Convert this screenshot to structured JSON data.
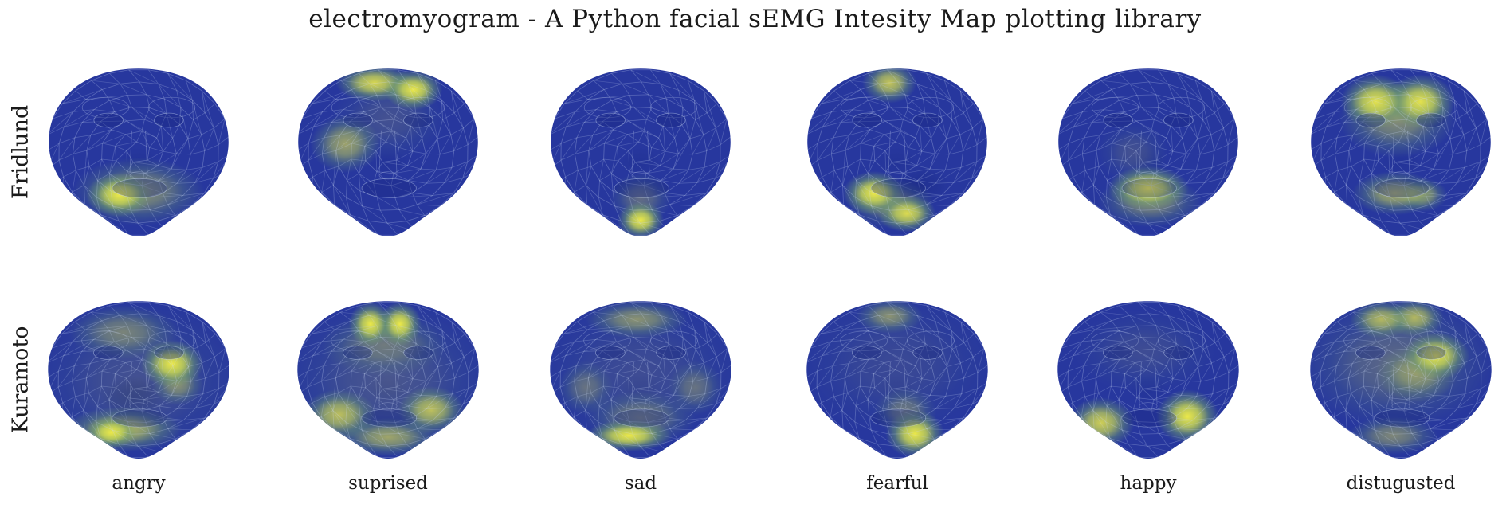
{
  "title": "electromyogram - A Python facial sEMG Intesity Map plotting library",
  "rows": [
    "Fridlund",
    "Kuramoto"
  ],
  "columns": [
    "angry",
    "suprised",
    "sad",
    "fearful",
    "happy",
    "distugusted"
  ],
  "colors": {
    "background": "#ffffff",
    "text": "#1a1a1a",
    "face_base": "#27379e",
    "mesh_line": "#cddcf8",
    "hot_core": "#ebe84a",
    "hot_mid": "#c5d554",
    "hot_outer": "#74a36c",
    "dark_feature": "#16267e"
  },
  "chart_data": {
    "type": "heatmap",
    "title": "electromyogram - A Python facial sEMG Intesity Map plotting library",
    "row_labels": [
      "Fridlund",
      "Kuramoto"
    ],
    "col_labels": [
      "angry",
      "suprised",
      "sad",
      "fearful",
      "happy",
      "distugusted"
    ],
    "colormap": {
      "low": "#27379e",
      "mid": "#74a36c",
      "high": "#ebe84a"
    },
    "faces": [
      {
        "row": "Fridlund",
        "emotion": "angry",
        "hotspots": [
          {
            "x": 0.4,
            "y": 0.75,
            "rx": 0.17,
            "ry": 0.13,
            "intensity": 1.0,
            "region": "left mouth corner"
          },
          {
            "x": 0.5,
            "y": 0.73,
            "rx": 0.34,
            "ry": 0.2,
            "intensity": 0.5,
            "region": "perioral halo"
          }
        ],
        "dark_spots": []
      },
      {
        "row": "Fridlund",
        "emotion": "suprised",
        "hotspots": [
          {
            "x": 0.63,
            "y": 0.13,
            "rx": 0.15,
            "ry": 0.12,
            "intensity": 1.0,
            "region": "right forehead"
          },
          {
            "x": 0.43,
            "y": 0.09,
            "rx": 0.2,
            "ry": 0.11,
            "intensity": 0.9,
            "region": "center forehead"
          },
          {
            "x": 0.28,
            "y": 0.45,
            "rx": 0.18,
            "ry": 0.17,
            "intensity": 0.6,
            "region": "left cheek"
          },
          {
            "x": 0.5,
            "y": 0.3,
            "rx": 0.3,
            "ry": 0.24,
            "intensity": 0.15,
            "region": "upper face glow"
          }
        ],
        "dark_spots": []
      },
      {
        "row": "Fridlund",
        "emotion": "sad",
        "hotspots": [
          {
            "x": 0.5,
            "y": 0.9,
            "rx": 0.12,
            "ry": 0.11,
            "intensity": 1.0,
            "region": "chin"
          },
          {
            "x": 0.5,
            "y": 0.77,
            "rx": 0.16,
            "ry": 0.15,
            "intensity": 0.3,
            "region": "below mouth glow"
          }
        ],
        "dark_spots": []
      },
      {
        "row": "Fridlund",
        "emotion": "fearful",
        "hotspots": [
          {
            "x": 0.38,
            "y": 0.74,
            "rx": 0.16,
            "ry": 0.13,
            "intensity": 1.0,
            "region": "left mouth corner"
          },
          {
            "x": 0.55,
            "y": 0.86,
            "rx": 0.15,
            "ry": 0.11,
            "intensity": 0.9,
            "region": "chin right"
          },
          {
            "x": 0.46,
            "y": 0.09,
            "rx": 0.14,
            "ry": 0.12,
            "intensity": 0.8,
            "region": "center forehead"
          },
          {
            "x": 0.47,
            "y": 0.8,
            "rx": 0.22,
            "ry": 0.15,
            "intensity": 0.4,
            "region": "lower face bridge"
          }
        ],
        "dark_spots": [
          {
            "x": 0.63,
            "y": 0.7,
            "rx": 0.14,
            "ry": 0.12,
            "intensity": 0.35,
            "region": "right of mouth"
          }
        ]
      },
      {
        "row": "Fridlund",
        "emotion": "happy",
        "hotspots": [
          {
            "x": 0.5,
            "y": 0.71,
            "rx": 0.21,
            "ry": 0.13,
            "intensity": 1.0,
            "region": "mouth band"
          },
          {
            "x": 0.51,
            "y": 0.79,
            "rx": 0.27,
            "ry": 0.15,
            "intensity": 0.45,
            "region": "lower mouth glow"
          },
          {
            "x": 0.42,
            "y": 0.5,
            "rx": 0.18,
            "ry": 0.18,
            "intensity": 0.15,
            "region": "left nose side"
          }
        ],
        "dark_spots": []
      },
      {
        "row": "Fridlund",
        "emotion": "distugusted",
        "hotspots": [
          {
            "x": 0.37,
            "y": 0.2,
            "rx": 0.18,
            "ry": 0.16,
            "intensity": 0.95,
            "region": "left brow"
          },
          {
            "x": 0.6,
            "y": 0.2,
            "rx": 0.18,
            "ry": 0.16,
            "intensity": 0.95,
            "region": "right brow"
          },
          {
            "x": 0.48,
            "y": 0.3,
            "rx": 0.3,
            "ry": 0.23,
            "intensity": 0.5,
            "region": "glabella / eye region"
          },
          {
            "x": 0.47,
            "y": 0.74,
            "rx": 0.22,
            "ry": 0.13,
            "intensity": 0.65,
            "region": "mouth band"
          },
          {
            "x": 0.61,
            "y": 0.75,
            "rx": 0.13,
            "ry": 0.1,
            "intensity": 0.55,
            "region": "right mouth corner"
          }
        ],
        "dark_spots": []
      },
      {
        "row": "Kuramoto",
        "emotion": "angry",
        "hotspots": [
          {
            "x": 0.67,
            "y": 0.4,
            "rx": 0.16,
            "ry": 0.15,
            "intensity": 1.0,
            "region": "right mid-cheek"
          },
          {
            "x": 0.36,
            "y": 0.83,
            "rx": 0.13,
            "ry": 0.1,
            "intensity": 1.0,
            "region": "left chin"
          },
          {
            "x": 0.42,
            "y": 0.81,
            "rx": 0.3,
            "ry": 0.14,
            "intensity": 0.7,
            "region": "chin band"
          },
          {
            "x": 0.7,
            "y": 0.53,
            "rx": 0.13,
            "ry": 0.13,
            "intensity": 0.45,
            "region": "right jaw streak"
          },
          {
            "x": 0.42,
            "y": 0.2,
            "rx": 0.28,
            "ry": 0.17,
            "intensity": 0.4,
            "region": "forehead"
          },
          {
            "x": 0.5,
            "y": 0.5,
            "rx": 0.55,
            "ry": 0.5,
            "intensity": 0.15,
            "region": "overall tint"
          }
        ],
        "dark_spots": [
          {
            "x": 0.47,
            "y": 0.61,
            "rx": 0.16,
            "ry": 0.13,
            "intensity": 0.5,
            "region": "under nose"
          }
        ]
      },
      {
        "row": "Kuramoto",
        "emotion": "suprised",
        "hotspots": [
          {
            "x": 0.41,
            "y": 0.15,
            "rx": 0.11,
            "ry": 0.14,
            "intensity": 1.0,
            "region": "left forehead column"
          },
          {
            "x": 0.56,
            "y": 0.15,
            "rx": 0.11,
            "ry": 0.14,
            "intensity": 1.0,
            "region": "right forehead column"
          },
          {
            "x": 0.25,
            "y": 0.72,
            "rx": 0.19,
            "ry": 0.16,
            "intensity": 0.75,
            "region": "left lower cheek"
          },
          {
            "x": 0.72,
            "y": 0.69,
            "rx": 0.17,
            "ry": 0.15,
            "intensity": 0.75,
            "region": "right lower cheek"
          },
          {
            "x": 0.5,
            "y": 0.86,
            "rx": 0.26,
            "ry": 0.12,
            "intensity": 0.6,
            "region": "chin band"
          },
          {
            "x": 0.48,
            "y": 0.28,
            "rx": 0.32,
            "ry": 0.2,
            "intensity": 0.3,
            "region": "upper face glow"
          },
          {
            "x": 0.5,
            "y": 0.5,
            "rx": 0.55,
            "ry": 0.5,
            "intensity": 0.18,
            "region": "overall tint"
          }
        ],
        "dark_spots": []
      },
      {
        "row": "Kuramoto",
        "emotion": "sad",
        "hotspots": [
          {
            "x": 0.44,
            "y": 0.85,
            "rx": 0.22,
            "ry": 0.1,
            "intensity": 1.0,
            "region": "chin band"
          },
          {
            "x": 0.48,
            "y": 0.12,
            "rx": 0.26,
            "ry": 0.12,
            "intensity": 0.5,
            "region": "forehead band"
          },
          {
            "x": 0.5,
            "y": 0.74,
            "rx": 0.28,
            "ry": 0.17,
            "intensity": 0.35,
            "region": "mouth glow"
          },
          {
            "x": 0.22,
            "y": 0.55,
            "rx": 0.14,
            "ry": 0.17,
            "intensity": 0.3,
            "region": "left cheek edge"
          },
          {
            "x": 0.78,
            "y": 0.55,
            "rx": 0.14,
            "ry": 0.17,
            "intensity": 0.3,
            "region": "right cheek edge"
          },
          {
            "x": 0.5,
            "y": 0.45,
            "rx": 0.52,
            "ry": 0.46,
            "intensity": 0.12,
            "region": "overall tint"
          }
        ],
        "dark_spots": []
      },
      {
        "row": "Kuramoto",
        "emotion": "fearful",
        "hotspots": [
          {
            "x": 0.59,
            "y": 0.84,
            "rx": 0.15,
            "ry": 0.15,
            "intensity": 1.0,
            "region": "right chin / jaw"
          },
          {
            "x": 0.46,
            "y": 0.1,
            "rx": 0.17,
            "ry": 0.11,
            "intensity": 0.5,
            "region": "forehead"
          },
          {
            "x": 0.54,
            "y": 0.7,
            "rx": 0.16,
            "ry": 0.15,
            "intensity": 0.35,
            "region": "lower face glow"
          },
          {
            "x": 0.5,
            "y": 0.4,
            "rx": 0.5,
            "ry": 0.44,
            "intensity": 0.1,
            "region": "overall tint"
          }
        ],
        "dark_spots": []
      },
      {
        "row": "Kuramoto",
        "emotion": "happy",
        "hotspots": [
          {
            "x": 0.7,
            "y": 0.73,
            "rx": 0.16,
            "ry": 0.17,
            "intensity": 1.0,
            "region": "right lower cheek"
          },
          {
            "x": 0.26,
            "y": 0.77,
            "rx": 0.17,
            "ry": 0.16,
            "intensity": 0.85,
            "region": "left lower cheek"
          },
          {
            "x": 0.48,
            "y": 0.32,
            "rx": 0.36,
            "ry": 0.26,
            "intensity": 0.12,
            "region": "upper face tint"
          }
        ],
        "dark_spots": []
      },
      {
        "row": "Kuramoto",
        "emotion": "distugusted",
        "hotspots": [
          {
            "x": 0.68,
            "y": 0.35,
            "rx": 0.17,
            "ry": 0.15,
            "intensity": 0.95,
            "region": "right of right eye"
          },
          {
            "x": 0.4,
            "y": 0.12,
            "rx": 0.16,
            "ry": 0.12,
            "intensity": 0.7,
            "region": "left forehead"
          },
          {
            "x": 0.57,
            "y": 0.11,
            "rx": 0.15,
            "ry": 0.12,
            "intensity": 0.7,
            "region": "right forehead"
          },
          {
            "x": 0.58,
            "y": 0.46,
            "rx": 0.21,
            "ry": 0.18,
            "intensity": 0.45,
            "region": "right mid-face streak"
          },
          {
            "x": 0.46,
            "y": 0.85,
            "rx": 0.23,
            "ry": 0.12,
            "intensity": 0.45,
            "region": "chin band"
          },
          {
            "x": 0.48,
            "y": 0.4,
            "rx": 0.5,
            "ry": 0.42,
            "intensity": 0.28,
            "region": "overall tint"
          }
        ],
        "dark_spots": []
      }
    ]
  }
}
